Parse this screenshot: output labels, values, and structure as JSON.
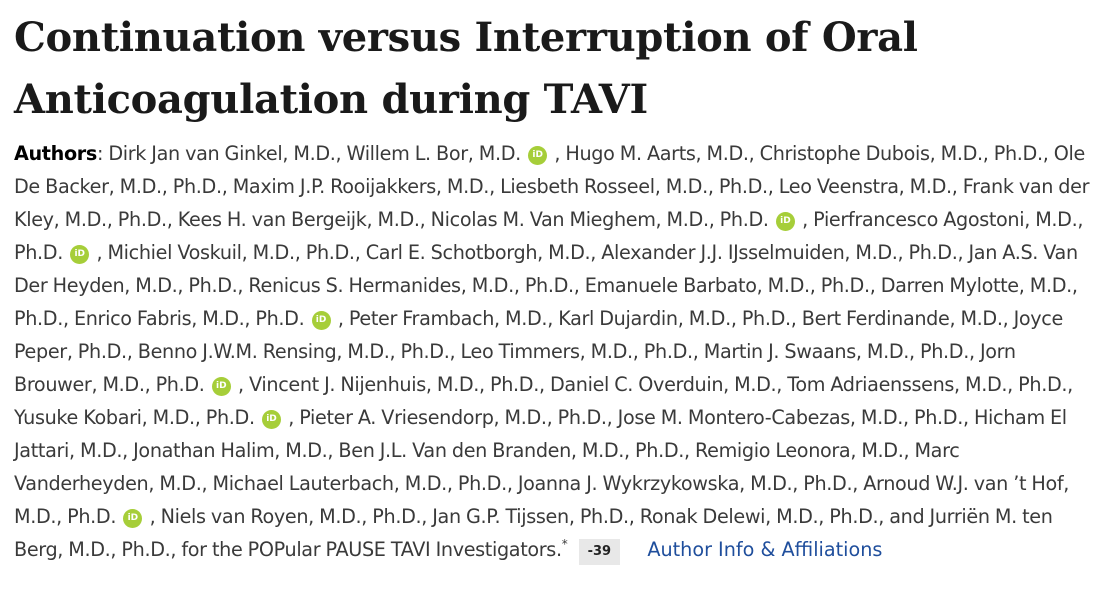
{
  "article": {
    "title": "Continuation versus Interruption of Oral Anticoagulation during TAVI",
    "authors_label": "Authors",
    "authors": [
      {
        "name": "Dirk Jan van Ginkel, M.D.",
        "orcid": false
      },
      {
        "name": "Willem L. Bor, M.D.",
        "orcid": true
      },
      {
        "name": "Hugo M. Aarts, M.D.",
        "orcid": false
      },
      {
        "name": "Christophe Dubois, M.D., Ph.D.",
        "orcid": false
      },
      {
        "name": "Ole De Backer, M.D., Ph.D.",
        "orcid": false
      },
      {
        "name": "Maxim J.P. Rooijakkers, M.D.",
        "orcid": false
      },
      {
        "name": "Liesbeth Rosseel, M.D., Ph.D.",
        "orcid": false
      },
      {
        "name": "Leo Veenstra, M.D.",
        "orcid": false
      },
      {
        "name": "Frank van der Kley, M.D., Ph.D.",
        "orcid": false
      },
      {
        "name": "Kees H. van Bergeijk, M.D.",
        "orcid": false
      },
      {
        "name": "Nicolas M. Van Mieghem, M.D., Ph.D.",
        "orcid": true
      },
      {
        "name": "Pierfrancesco Agostoni, M.D., Ph.D.",
        "orcid": true
      },
      {
        "name": "Michiel Voskuil, M.D., Ph.D.",
        "orcid": false
      },
      {
        "name": "Carl E. Schotborgh, M.D.",
        "orcid": false
      },
      {
        "name": "Alexander J.J. IJsselmuiden, M.D., Ph.D.",
        "orcid": false
      },
      {
        "name": "Jan A.S. Van Der Heyden, M.D., Ph.D.",
        "orcid": false
      },
      {
        "name": "Renicus S. Hermanides, M.D., Ph.D.",
        "orcid": false
      },
      {
        "name": "Emanuele Barbato, M.D., Ph.D.",
        "orcid": false
      },
      {
        "name": "Darren Mylotte, M.D., Ph.D.",
        "orcid": false
      },
      {
        "name": "Enrico Fabris, M.D., Ph.D.",
        "orcid": true
      },
      {
        "name": "Peter Frambach, M.D.",
        "orcid": false
      },
      {
        "name": "Karl Dujardin, M.D., Ph.D.",
        "orcid": false
      },
      {
        "name": "Bert Ferdinande, M.D.",
        "orcid": false
      },
      {
        "name": "Joyce Peper, Ph.D.",
        "orcid": false
      },
      {
        "name": "Benno J.W.M. Rensing, M.D., Ph.D.",
        "orcid": false
      },
      {
        "name": "Leo Timmers, M.D., Ph.D.",
        "orcid": false
      },
      {
        "name": "Martin J. Swaans, M.D., Ph.D.",
        "orcid": false
      },
      {
        "name": "Jorn Brouwer, M.D., Ph.D.",
        "orcid": true
      },
      {
        "name": "Vincent J. Nijenhuis, M.D., Ph.D.",
        "orcid": false
      },
      {
        "name": "Daniel C. Overduin, M.D.",
        "orcid": false
      },
      {
        "name": "Tom Adriaenssens, M.D., Ph.D.",
        "orcid": false
      },
      {
        "name": "Yusuke Kobari, M.D., Ph.D.",
        "orcid": true
      },
      {
        "name": "Pieter A. Vriesendorp, M.D., Ph.D.",
        "orcid": false
      },
      {
        "name": "Jose M. Montero-Cabezas, M.D., Ph.D.",
        "orcid": false
      },
      {
        "name": "Hicham El Jattari, M.D.",
        "orcid": false
      },
      {
        "name": "Jonathan Halim, M.D.",
        "orcid": false
      },
      {
        "name": "Ben J.L. Van den Branden, M.D., Ph.D.",
        "orcid": false
      },
      {
        "name": "Remigio Leonora, M.D.",
        "orcid": false
      },
      {
        "name": "Marc Vanderheyden, M.D.",
        "orcid": false
      },
      {
        "name": "Michael Lauterbach, M.D., Ph.D.",
        "orcid": false
      },
      {
        "name": "Joanna J. Wykrzykowska, M.D., Ph.D.",
        "orcid": false
      },
      {
        "name": "Arnoud W.J. van ’t Hof, M.D., Ph.D.",
        "orcid": true
      },
      {
        "name": "Niels van Royen, M.D., Ph.D.",
        "orcid": false
      },
      {
        "name": "Jan G.P. Tijssen, Ph.D.",
        "orcid": false
      },
      {
        "name": "Ronak Delewi, M.D., Ph.D.",
        "orcid": false
      },
      {
        "name": "Jurriën M. ten Berg, M.D., Ph.D.",
        "orcid": false
      }
    ],
    "group": "for the POPular PAUSE TAVI Investigators.",
    "footnote_mark": "*",
    "badge": "-39",
    "affiliations_link": "Author Info & Affiliations",
    "orcid_icon_text": "iD",
    "colors": {
      "orcid": "#a6ce39",
      "link": "#1f4e9c"
    }
  }
}
